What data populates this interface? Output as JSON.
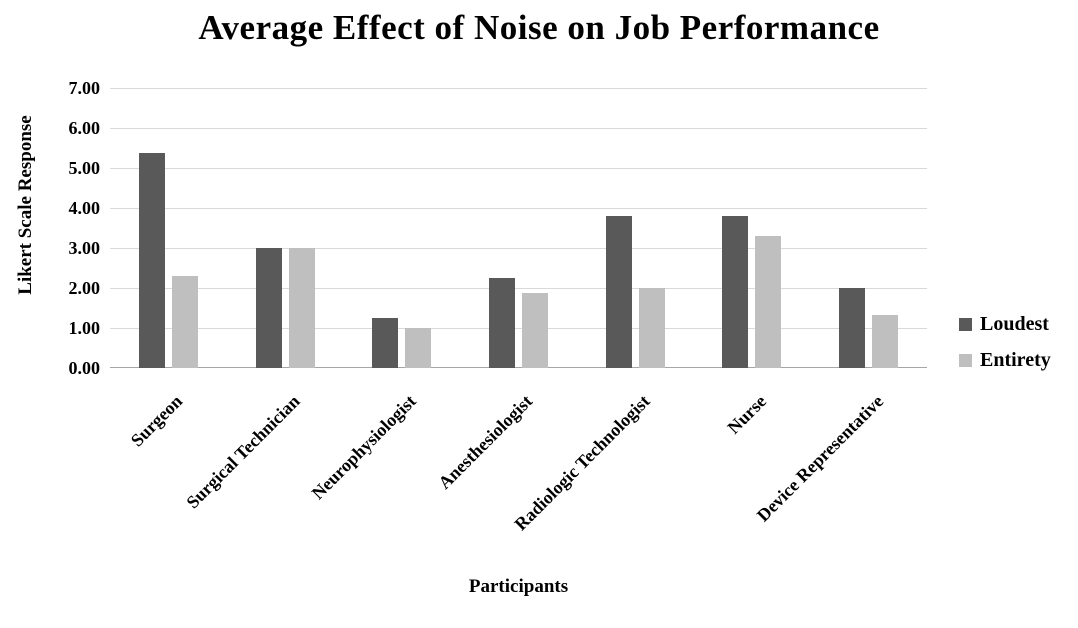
{
  "chart_data": {
    "type": "bar",
    "title": "Average Effect of Noise on Job Performance",
    "xlabel": "Participants",
    "ylabel": "Likert Scale Response",
    "categories": [
      "Surgeon",
      "Surgical Technician",
      "Neurophysiologist",
      "Anesthesiologist",
      "Radiologic Technologist",
      "Nurse",
      "Device Representative"
    ],
    "series": [
      {
        "name": "Loudest",
        "color": "#595959",
        "values": [
          5.38,
          3.0,
          1.25,
          2.25,
          3.8,
          3.8,
          2.0
        ]
      },
      {
        "name": "Entirety",
        "color": "#bfbfbf",
        "values": [
          2.29,
          3.0,
          1.0,
          1.88,
          2.0,
          3.3,
          1.33
        ]
      }
    ],
    "ylim": [
      0,
      7
    ],
    "ytick_step": 1,
    "yticks": [
      "7.00",
      "6.00",
      "5.00",
      "4.00",
      "3.00",
      "2.00",
      "1.00",
      "0.00"
    ],
    "grid": true,
    "legend_position": "right"
  },
  "colors": {
    "gridline": "#d9d9d9",
    "axis_line": "#a6a6a6",
    "text": "#000000",
    "background": "#ffffff"
  }
}
